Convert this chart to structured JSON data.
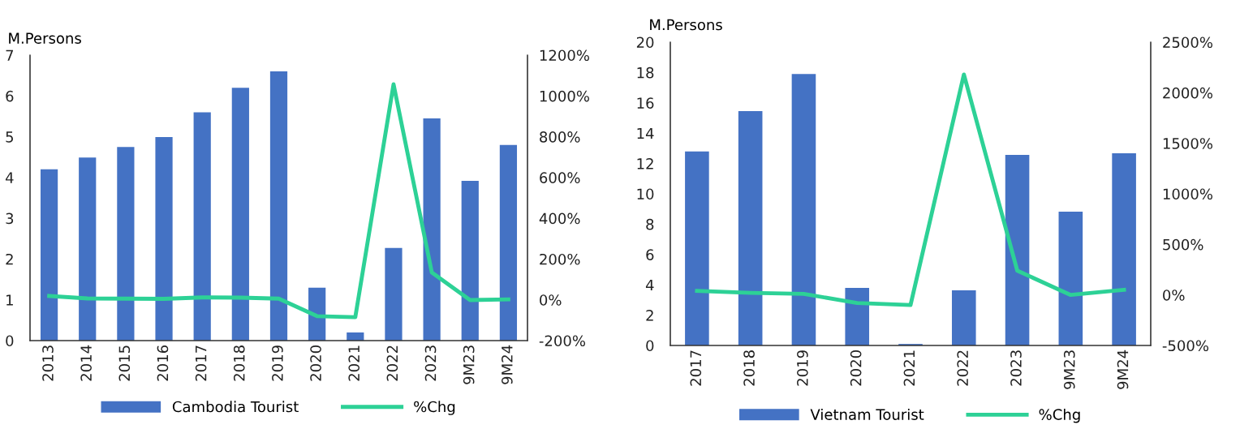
{
  "chart_data": [
    {
      "type": "bar",
      "ylabel": "M.Persons",
      "categories": [
        "2013",
        "2014",
        "2015",
        "2016",
        "2017",
        "2018",
        "2019",
        "2020",
        "2021",
        "2022",
        "2023",
        "9M23",
        "9M24"
      ],
      "series": [
        {
          "name": "Cambodia Tourist",
          "color": "#4472c4",
          "values": [
            4.2,
            4.49,
            4.75,
            4.99,
            5.6,
            6.2,
            6.6,
            1.3,
            0.2,
            2.27,
            5.45,
            3.92,
            4.8
          ]
        },
        {
          "name": "%Chg",
          "type": "line",
          "axis": "y2",
          "color": "#2dd196",
          "values": [
            19,
            7,
            6,
            5,
            12,
            11,
            6,
            -80,
            -85,
            1057,
            134,
            -1,
            2
          ]
        }
      ],
      "ylim": [
        0,
        7
      ],
      "yticks": [
        0,
        1,
        2,
        3,
        4,
        5,
        6,
        7
      ],
      "y2lim": [
        -200,
        1200
      ],
      "y2ticks": [
        {
          "value": -200,
          "label": "-200%"
        },
        {
          "value": 0,
          "label": "0%"
        },
        {
          "value": 200,
          "label": "200%"
        },
        {
          "value": 400,
          "label": "400%"
        },
        {
          "value": 600,
          "label": "600%"
        },
        {
          "value": 800,
          "label": "800%"
        },
        {
          "value": 1000,
          "label": "1000%"
        },
        {
          "value": 1200,
          "label": "1200%"
        }
      ],
      "grid": false,
      "legend": "bottom"
    },
    {
      "type": "bar",
      "ylabel": "M.Persons",
      "categories": [
        "2017",
        "2018",
        "2019",
        "2020",
        "2021",
        "2022",
        "2023",
        "9M23",
        "9M24"
      ],
      "series": [
        {
          "name": "Vietnam Tourist",
          "color": "#4472c4",
          "values": [
            12.8,
            15.45,
            17.9,
            3.8,
            0.1,
            3.64,
            12.57,
            8.82,
            12.67
          ]
        },
        {
          "name": "%Chg",
          "type": "line",
          "axis": "y2",
          "color": "#2dd196",
          "values": [
            40,
            20,
            10,
            -80,
            -100,
            2180,
            240,
            0,
            50
          ]
        }
      ],
      "ylim": [
        0,
        20
      ],
      "yticks": [
        0,
        2,
        4,
        6,
        8,
        10,
        12,
        14,
        16,
        18,
        20
      ],
      "y2lim": [
        -500,
        2500
      ],
      "y2ticks": [
        {
          "value": -500,
          "label": "-500%"
        },
        {
          "value": 0,
          "label": "0%"
        },
        {
          "value": 500,
          "label": "500%"
        },
        {
          "value": 1000,
          "label": "1000%"
        },
        {
          "value": 1500,
          "label": "1500%"
        },
        {
          "value": 2000,
          "label": "2000%"
        },
        {
          "value": 2500,
          "label": "2500%"
        }
      ],
      "grid": false,
      "legend": "bottom"
    }
  ]
}
